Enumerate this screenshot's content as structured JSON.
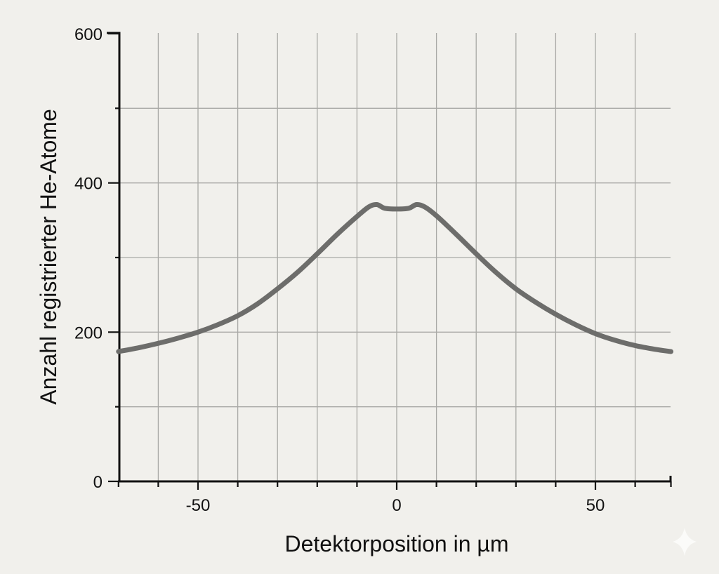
{
  "chart_data": {
    "type": "line",
    "title": "",
    "xlabel": "Detektorposition in µm",
    "ylabel": "Anzahl registrierter He-Atome",
    "xlim": [
      -70,
      69
    ],
    "ylim": [
      0,
      600
    ],
    "x_ticks_labeled": [
      -50,
      0,
      50
    ],
    "x_tick_labels": [
      "-50",
      "0",
      "50"
    ],
    "x_minor_ticks": [
      -70,
      -60,
      -50,
      -40,
      -30,
      -20,
      -10,
      0,
      10,
      20,
      30,
      40,
      50,
      60,
      69
    ],
    "y_ticks_labeled": [
      0,
      200,
      400,
      600
    ],
    "y_tick_labels": [
      "0",
      "200",
      "400",
      "600"
    ],
    "y_minor_ticks": [
      0,
      100,
      200,
      300,
      400,
      500,
      600
    ],
    "grid": true,
    "legend": null,
    "series": [
      {
        "name": "He-Atome",
        "color": "#6d6d6b",
        "x": [
          -70,
          -65,
          -60,
          -55,
          -50,
          -45,
          -40,
          -35,
          -30,
          -25,
          -20,
          -15,
          -10,
          -7,
          -5,
          -3,
          0,
          3,
          5,
          7,
          10,
          15,
          20,
          25,
          30,
          35,
          40,
          45,
          50,
          55,
          60,
          65,
          69
        ],
        "y": [
          174,
          179,
          185,
          192,
          200,
          210,
          222,
          238,
          258,
          280,
          305,
          331,
          355,
          368,
          371,
          366,
          365,
          366,
          371,
          368,
          356,
          331,
          305,
          280,
          258,
          240,
          224,
          210,
          198,
          189,
          182,
          177,
          174
        ]
      }
    ]
  },
  "watermark": {
    "icon": "sparkle-icon"
  }
}
